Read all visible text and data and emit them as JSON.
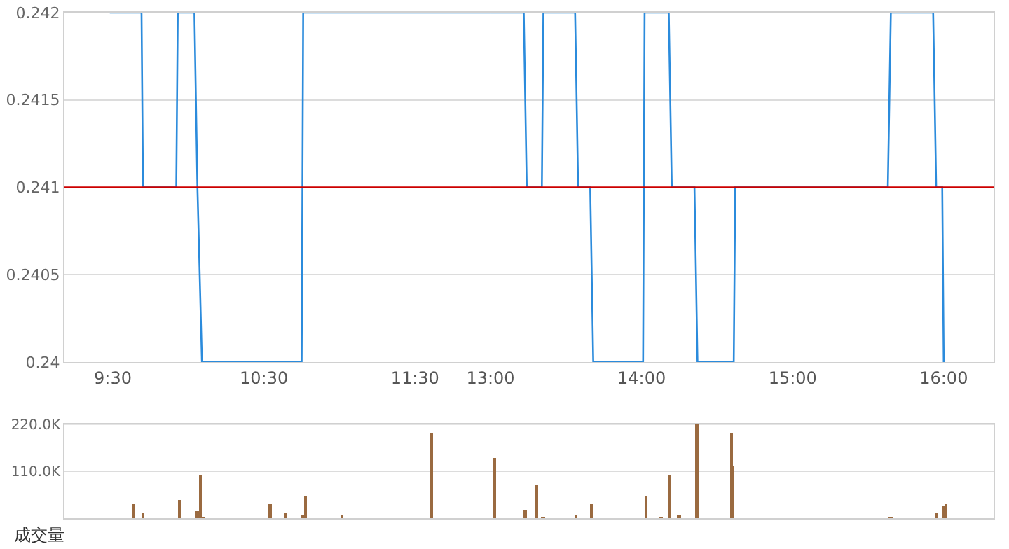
{
  "chart_data": [
    {
      "type": "line",
      "xlim": [
        9.18,
        12.0
      ],
      "xticks": [
        {
          "value": 9.5,
          "label": "9:30"
        },
        {
          "value": 10.5,
          "label": "10:30"
        },
        {
          "value": 11.5,
          "label": "11:30"
        }
      ],
      "ylim": [
        0.24,
        0.242
      ],
      "yticks": [
        0.24,
        0.2405,
        0.241,
        0.2415,
        0.242
      ],
      "grid": "y",
      "marker": "none",
      "line_style": "solid",
      "series": [
        {
          "color": "#2b8bdc",
          "x": [
            9.48,
            9.69,
            9.7,
            9.92,
            9.93,
            10.04,
            10.06,
            10.09,
            10.75,
            10.76,
            12.0
          ],
          "values": [
            0.242,
            0.242,
            0.241,
            0.241,
            0.242,
            0.242,
            0.241,
            0.24,
            0.24,
            0.242,
            0.242
          ]
        }
      ],
      "ref_lines": [
        {
          "axis": "y",
          "value": 0.241,
          "color": "#cc0000"
        }
      ]
    },
    {
      "type": "line",
      "xlim": [
        13.0,
        16.33
      ],
      "xticks": [
        {
          "value": 13,
          "label": "13:00"
        },
        {
          "value": 14,
          "label": "14:00"
        },
        {
          "value": 15,
          "label": "15:00"
        },
        {
          "value": 16,
          "label": "16:00"
        }
      ],
      "ylim": [
        0.24,
        0.242
      ],
      "yticks": [
        0.24,
        0.2405,
        0.241,
        0.2415,
        0.242
      ],
      "grid": "y",
      "marker": "none",
      "line_style": "solid",
      "tick_labels": "x",
      "series": [
        {
          "color": "#2b8bdc",
          "x": [
            13.0,
            13.22,
            13.24,
            13.34,
            13.35,
            13.56,
            13.58,
            13.66,
            13.68,
            14.01,
            14.02,
            14.18,
            14.2,
            14.35,
            14.37,
            14.61,
            14.62,
            15.63,
            15.65,
            15.93,
            15.95,
            15.99,
            16.0
          ],
          "values": [
            0.242,
            0.242,
            0.241,
            0.241,
            0.242,
            0.242,
            0.241,
            0.241,
            0.24,
            0.24,
            0.242,
            0.242,
            0.241,
            0.241,
            0.24,
            0.24,
            0.241,
            0.241,
            0.242,
            0.242,
            0.241,
            0.241,
            0.24
          ]
        }
      ],
      "ref_lines": [
        {
          "axis": "y",
          "value": 0.241,
          "color": "#cc0000"
        }
      ]
    },
    {
      "type": "bar",
      "xlim": [
        9.18,
        12.0
      ],
      "ylim": [
        0,
        220000
      ],
      "yticks": [
        {
          "value": 110000,
          "label": "110.0K"
        },
        {
          "value": 220000,
          "label": "220.0K"
        }
      ],
      "grid": "y",
      "tick_labels": "y",
      "series": [
        {
          "color": "#9a6a40",
          "x": [
            9.64,
            9.7,
            9.94,
            10.06,
            10.08,
            10.1,
            10.54,
            10.65,
            10.76,
            10.78,
            11.02,
            11.61
          ],
          "values": [
            33000,
            14000,
            43000,
            17000,
            101000,
            4000,
            33000,
            14000,
            7000,
            53000,
            7000,
            201000
          ]
        }
      ],
      "annotations": [
        "成交量"
      ]
    },
    {
      "type": "bar",
      "xlim": [
        13.0,
        16.33
      ],
      "ylim": [
        0,
        220000
      ],
      "tick_labels": false,
      "series": [
        {
          "color": "#9a6a40",
          "x": [
            13.03,
            13.23,
            13.31,
            13.35,
            13.57,
            13.67,
            14.03,
            14.13,
            14.19,
            14.25,
            14.37,
            14.6,
            14.61,
            15.65,
            15.95,
            16.0,
            16.02
          ],
          "values": [
            140000,
            20000,
            79000,
            4000,
            7000,
            33000,
            53000,
            4000,
            101000,
            7000,
            220000,
            201000,
            121000,
            4000,
            14000,
            30000,
            33000
          ]
        }
      ]
    }
  ]
}
